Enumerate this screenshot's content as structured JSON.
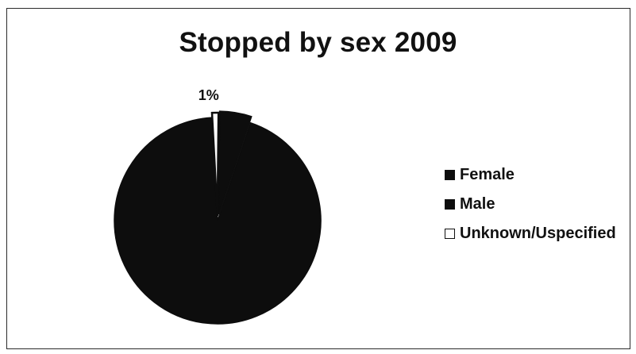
{
  "chart_data": {
    "type": "pie",
    "title": "Stopped by sex 2009",
    "categories": [
      "Female",
      "Male",
      "Unknown/Uspecified"
    ],
    "values": [
      5,
      94,
      1
    ],
    "colors": [
      "#0d0d0d",
      "#0d0d0d",
      "#ffffff"
    ],
    "data_labels": [
      "",
      "",
      "1%"
    ],
    "legend_position": "right"
  }
}
